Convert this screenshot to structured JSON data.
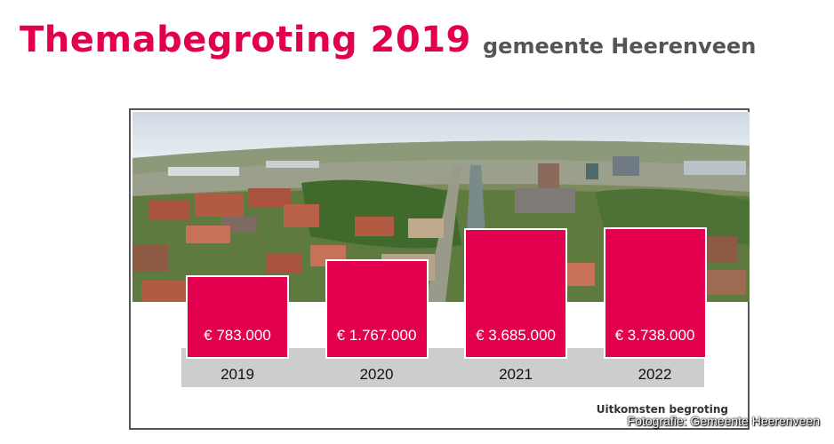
{
  "header": {
    "title": "Themabegroting 2019",
    "subtitle": "gemeente Heerenveen"
  },
  "caption": "Uitkomsten begroting",
  "credit": "Fotografie: Gemeente Heerenveen",
  "colors": {
    "accent": "#e2004f",
    "band": "#cdcdcd",
    "subtitle": "#555555"
  },
  "chart_data": {
    "type": "bar",
    "categories": [
      "2019",
      "2020",
      "2021",
      "2022"
    ],
    "values": [
      783000,
      1767000,
      3685000,
      3738000
    ],
    "value_labels": [
      "€ 783.000",
      "€ 1.767.000",
      "€ 3.685.000",
      "€ 3.738.000"
    ],
    "title": "",
    "xlabel": "",
    "ylabel": "",
    "grid": false,
    "legend": "none"
  }
}
